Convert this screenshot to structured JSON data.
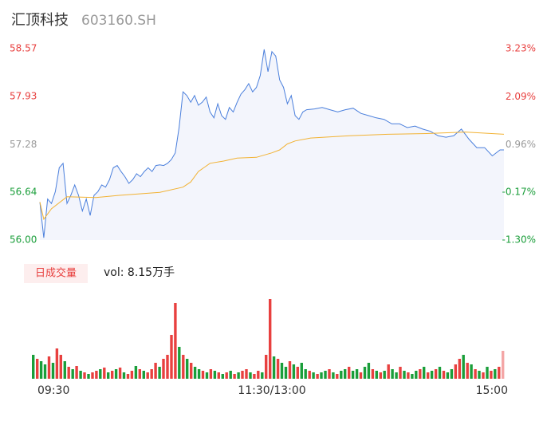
{
  "chart_data": {
    "type": "intraday",
    "title": "汇顶科技",
    "subtitle": "603160.SH",
    "volume_label": "日成交量",
    "volume_text": "vol: 8.15万手",
    "xlim": [
      0,
      240
    ],
    "xticks": [
      {
        "value": 0,
        "label": "09:30"
      },
      {
        "value": 120,
        "label": "11:30/13:00"
      },
      {
        "value": 240,
        "label": "15:00"
      }
    ],
    "ylim": [
      56.0,
      58.57
    ],
    "yticks": [
      58.57,
      57.93,
      57.28,
      56.64,
      {
        "value": 56.0,
        "label": "56.00"
      }
    ],
    "y2lim": [
      -1.3,
      3.23
    ],
    "y2ticks": [
      {
        "value": 3.23,
        "label": "3.23%"
      },
      {
        "value": 2.09,
        "label": "2.09%"
      },
      {
        "value": 0.96,
        "label": "0.96%"
      },
      {
        "value": -0.17,
        "label": "-0.17%"
      },
      {
        "value": -1.3,
        "label": "-1.30%"
      }
    ],
    "up_color": "#e8403f",
    "down_color": "#1a9e3a",
    "flat_color": "#999999",
    "series": [
      {
        "color": "#4a7fdc",
        "fill": "#f3f5fc",
        "x": [
          0,
          2,
          4,
          6,
          8,
          10,
          12,
          14,
          16,
          18,
          20,
          22,
          24,
          26,
          28,
          30,
          32,
          34,
          36,
          38,
          40,
          42,
          44,
          46,
          48,
          50,
          52,
          54,
          56,
          58,
          60,
          62,
          64,
          66,
          68,
          70,
          72,
          74,
          76,
          78,
          80,
          82,
          84,
          86,
          88,
          90,
          92,
          94,
          96,
          98,
          100,
          102,
          104,
          106,
          108,
          110,
          112,
          114,
          116,
          118,
          120,
          122,
          124,
          126,
          128,
          130,
          132,
          134,
          136,
          138,
          142,
          146,
          150,
          154,
          158,
          162,
          166,
          170,
          174,
          178,
          182,
          186,
          190,
          194,
          198,
          202,
          206,
          210,
          214,
          218,
          222,
          226,
          230,
          234,
          238,
          240
        ],
        "values": [
          56.51,
          56.03,
          56.55,
          56.49,
          56.65,
          56.97,
          57.03,
          56.49,
          56.6,
          56.74,
          56.6,
          56.39,
          56.55,
          56.33,
          56.6,
          56.65,
          56.74,
          56.71,
          56.81,
          56.97,
          57.0,
          56.92,
          56.85,
          56.76,
          56.81,
          56.89,
          56.85,
          56.92,
          56.97,
          56.92,
          57.0,
          57.01,
          57.0,
          57.03,
          57.08,
          57.17,
          57.51,
          57.99,
          57.94,
          57.85,
          57.94,
          57.81,
          57.85,
          57.92,
          57.72,
          57.64,
          57.83,
          57.67,
          57.62,
          57.78,
          57.72,
          57.85,
          57.96,
          58.02,
          58.1,
          57.99,
          58.05,
          58.21,
          58.56,
          58.26,
          58.53,
          58.47,
          58.15,
          58.05,
          57.83,
          57.94,
          57.67,
          57.62,
          57.72,
          57.75,
          57.76,
          57.78,
          57.75,
          57.72,
          57.75,
          57.77,
          57.7,
          57.67,
          57.64,
          57.62,
          57.56,
          57.56,
          57.51,
          57.53,
          57.49,
          57.46,
          57.4,
          57.38,
          57.4,
          57.49,
          57.35,
          57.24,
          57.24,
          57.13,
          57.21,
          57.21
        ]
      },
      {
        "color": "#f2b233",
        "x": [
          0,
          2,
          6,
          14,
          29,
          41,
          62,
          74,
          78,
          82,
          88,
          95,
          102,
          112,
          120,
          124,
          128,
          132,
          140,
          160,
          180,
          200,
          220,
          240
        ],
        "values": [
          56.51,
          56.28,
          56.42,
          56.58,
          56.57,
          56.6,
          56.64,
          56.71,
          56.78,
          56.92,
          57.03,
          57.06,
          57.1,
          57.11,
          57.17,
          57.21,
          57.29,
          57.33,
          57.37,
          57.4,
          57.42,
          57.43,
          57.45,
          57.42
        ]
      }
    ],
    "volume_ylim": [
      0,
      100
    ],
    "volume": [
      30,
      25,
      22,
      18,
      28,
      20,
      38,
      30,
      22,
      15,
      12,
      16,
      10,
      8,
      6,
      8,
      10,
      12,
      14,
      8,
      10,
      12,
      14,
      8,
      6,
      10,
      16,
      12,
      10,
      8,
      12,
      20,
      15,
      25,
      30,
      55,
      95,
      40,
      30,
      25,
      20,
      15,
      12,
      10,
      8,
      12,
      10,
      8,
      6,
      8,
      10,
      6,
      8,
      10,
      12,
      8,
      6,
      10,
      8,
      30,
      100,
      28,
      25,
      20,
      15,
      22,
      18,
      15,
      20,
      12,
      10,
      8,
      6,
      8,
      10,
      12,
      8,
      6,
      10,
      12,
      15,
      10,
      12,
      8,
      15,
      20,
      12,
      10,
      8,
      10,
      18,
      12,
      8,
      15,
      10,
      8,
      6,
      10,
      12,
      15,
      8,
      10,
      12,
      15,
      10,
      8,
      12,
      18,
      25,
      30,
      20,
      18,
      12,
      10,
      8,
      15,
      10,
      12,
      15,
      35
    ],
    "volume_colors": [
      "#1a9e3a",
      "#e8403f",
      "#1a9e3a",
      "#1a9e3a",
      "#e8403f",
      "#1a9e3a",
      "#e8403f",
      "#e8403f",
      "#1a9e3a",
      "#e8403f",
      "#1a9e3a",
      "#e8403f",
      "#1a9e3a",
      "#e8403f",
      "#1a9e3a",
      "#e8403f",
      "#e8403f",
      "#1a9e3a",
      "#e8403f",
      "#1a9e3a",
      "#e8403f",
      "#1a9e3a",
      "#e8403f",
      "#1a9e3a",
      "#e8403f",
      "#e8403f",
      "#1a9e3a",
      "#e8403f",
      "#1a9e3a",
      "#e8403f",
      "#e8403f",
      "#e8403f",
      "#1a9e3a",
      "#e8403f",
      "#e8403f",
      "#e8403f",
      "#e8403f",
      "#1a9e3a",
      "#e8403f",
      "#1a9e3a",
      "#e8403f",
      "#1a9e3a",
      "#1a9e3a",
      "#e8403f",
      "#1a9e3a",
      "#e8403f",
      "#1a9e3a",
      "#e8403f",
      "#1a9e3a",
      "#e8403f",
      "#1a9e3a",
      "#e8403f",
      "#1a9e3a",
      "#e8403f",
      "#e8403f",
      "#1a9e3a",
      "#e8403f",
      "#e8403f",
      "#1a9e3a",
      "#e8403f",
      "#e8403f",
      "#1a9e3a",
      "#e8403f",
      "#1a9e3a",
      "#1a9e3a",
      "#e8403f",
      "#1a9e3a",
      "#e8403f",
      "#1a9e3a",
      "#1a9e3a",
      "#e8403f",
      "#1a9e3a",
      "#e8403f",
      "#1a9e3a",
      "#1a9e3a",
      "#e8403f",
      "#1a9e3a",
      "#e8403f",
      "#1a9e3a",
      "#1a9e3a",
      "#e8403f",
      "#1a9e3a",
      "#1a9e3a",
      "#e8403f",
      "#1a9e3a",
      "#1a9e3a",
      "#e8403f",
      "#1a9e3a",
      "#e8403f",
      "#1a9e3a",
      "#e8403f",
      "#1a9e3a",
      "#1a9e3a",
      "#e8403f",
      "#1a9e3a",
      "#e8403f",
      "#1a9e3a",
      "#1a9e3a",
      "#e8403f",
      "#1a9e3a",
      "#e8403f",
      "#1a9e3a",
      "#e8403f",
      "#1a9e3a",
      "#e8403f",
      "#1a9e3a",
      "#1a9e3a",
      "#e8403f",
      "#e8403f",
      "#1a9e3a",
      "#e8403f",
      "#1a9e3a",
      "#e8403f",
      "#1a9e3a",
      "#e8403f",
      "#1a9e3a",
      "#e8403f",
      "#1a9e3a",
      "#e8403f",
      "#f4a6a6"
    ]
  }
}
